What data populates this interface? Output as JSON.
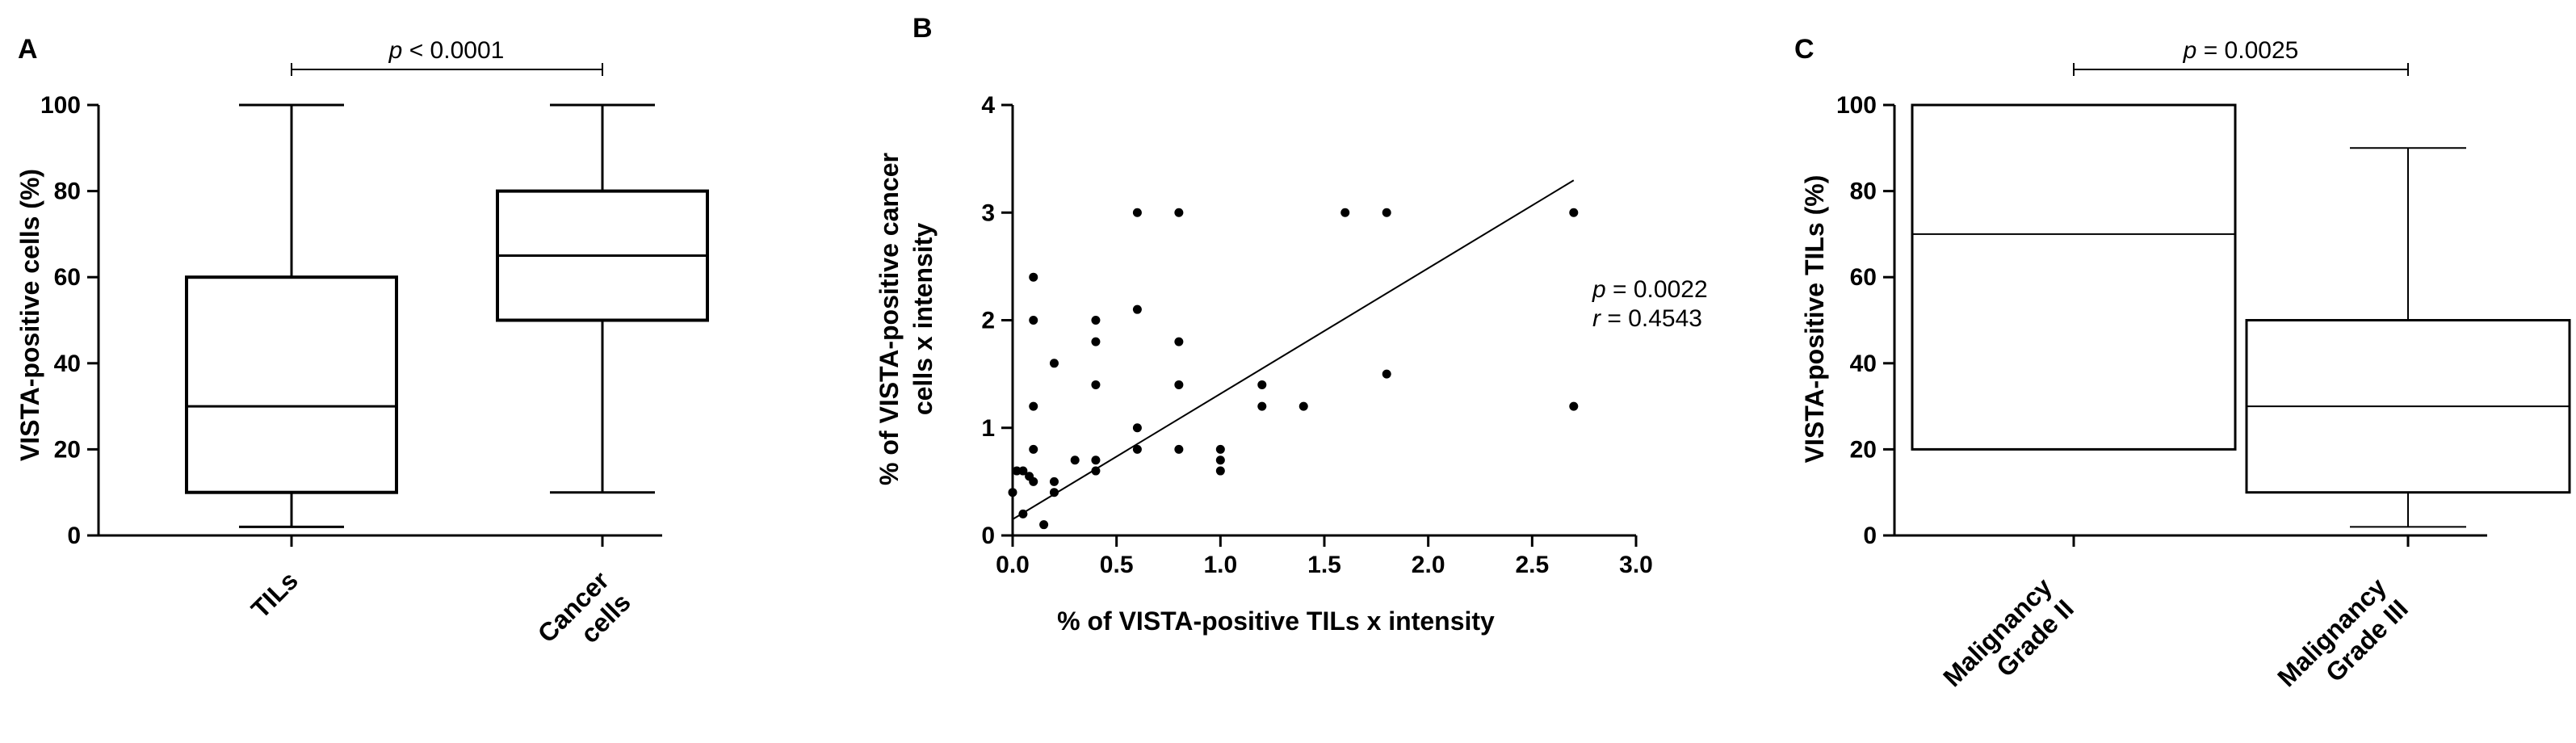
{
  "chart_data": [
    {
      "panel": "A",
      "type": "box",
      "ylabel": "VISTA-positive cells (%)",
      "ylim": [
        0,
        100
      ],
      "yticks": [
        "0",
        "20",
        "40",
        "60",
        "80",
        "100"
      ],
      "categories": [
        "TILs",
        "Cancer cells"
      ],
      "category_lines": [
        [
          "TILs"
        ],
        [
          "Cancer",
          "cells"
        ]
      ],
      "boxes": [
        {
          "min": 2,
          "q1": 10,
          "median": 30,
          "q3": 60,
          "max": 100
        },
        {
          "min": 10,
          "q1": 50,
          "median": 65,
          "q3": 80,
          "max": 100
        }
      ],
      "significance": {
        "p_italic": "p",
        "p_text": " < 0.0001"
      }
    },
    {
      "panel": "B",
      "type": "scatter",
      "xlabel": "% of VISTA-positive TILs x intensity",
      "ylabel_lines": [
        "% of VISTA-positive cancer",
        "cells x intensity"
      ],
      "xlim": [
        0,
        3.0
      ],
      "ylim": [
        0,
        4
      ],
      "xticks": [
        "0.0",
        "0.5",
        "1.0",
        "1.5",
        "2.0",
        "2.5",
        "3.0"
      ],
      "yticks": [
        "0",
        "1",
        "2",
        "3",
        "4"
      ],
      "points": [
        [
          0.0,
          0.4
        ],
        [
          0.02,
          0.6
        ],
        [
          0.05,
          0.6
        ],
        [
          0.05,
          0.2
        ],
        [
          0.08,
          0.55
        ],
        [
          0.1,
          2.4
        ],
        [
          0.1,
          2.0
        ],
        [
          0.1,
          1.2
        ],
        [
          0.1,
          0.8
        ],
        [
          0.1,
          0.5
        ],
        [
          0.15,
          0.1
        ],
        [
          0.2,
          1.6
        ],
        [
          0.2,
          0.5
        ],
        [
          0.2,
          0.4
        ],
        [
          0.3,
          0.7
        ],
        [
          0.4,
          2.0
        ],
        [
          0.4,
          1.8
        ],
        [
          0.4,
          1.4
        ],
        [
          0.4,
          0.7
        ],
        [
          0.4,
          0.6
        ],
        [
          0.6,
          3.0
        ],
        [
          0.6,
          2.1
        ],
        [
          0.6,
          1.0
        ],
        [
          0.6,
          0.8
        ],
        [
          0.8,
          3.0
        ],
        [
          0.8,
          1.8
        ],
        [
          0.8,
          1.4
        ],
        [
          0.8,
          0.8
        ],
        [
          1.0,
          0.8
        ],
        [
          1.0,
          0.7
        ],
        [
          1.0,
          0.6
        ],
        [
          1.2,
          1.4
        ],
        [
          1.2,
          1.2
        ],
        [
          1.4,
          1.2
        ],
        [
          1.6,
          3.0
        ],
        [
          1.8,
          3.0
        ],
        [
          1.8,
          1.5
        ],
        [
          2.7,
          3.0
        ],
        [
          2.7,
          1.2
        ]
      ],
      "regression": {
        "x": [
          0.0,
          2.7
        ],
        "y": [
          0.15,
          3.3
        ]
      },
      "stats": {
        "p_italic": "p",
        "p_text": " = 0.0022",
        "r_italic": "r",
        "r_text": " = 0.4543"
      }
    },
    {
      "panel": "C",
      "type": "box",
      "ylabel": "VISTA-positive TILs (%)",
      "ylim": [
        0,
        100
      ],
      "yticks": [
        "0",
        "20",
        "40",
        "60",
        "80",
        "100"
      ],
      "categories": [
        "Malignancy Grade II",
        "Malignancy Grade III"
      ],
      "category_lines": [
        [
          "Malignancy",
          "Grade II"
        ],
        [
          "Malignancy",
          "Grade III"
        ]
      ],
      "boxes": [
        {
          "min": 20,
          "q1": 20,
          "median": 70,
          "q3": 100,
          "max": 100
        },
        {
          "min": 2,
          "q1": 10,
          "median": 30,
          "q3": 50,
          "max": 90
        }
      ],
      "significance": {
        "p_italic": "p",
        "p_text": " = 0.0025"
      }
    }
  ]
}
